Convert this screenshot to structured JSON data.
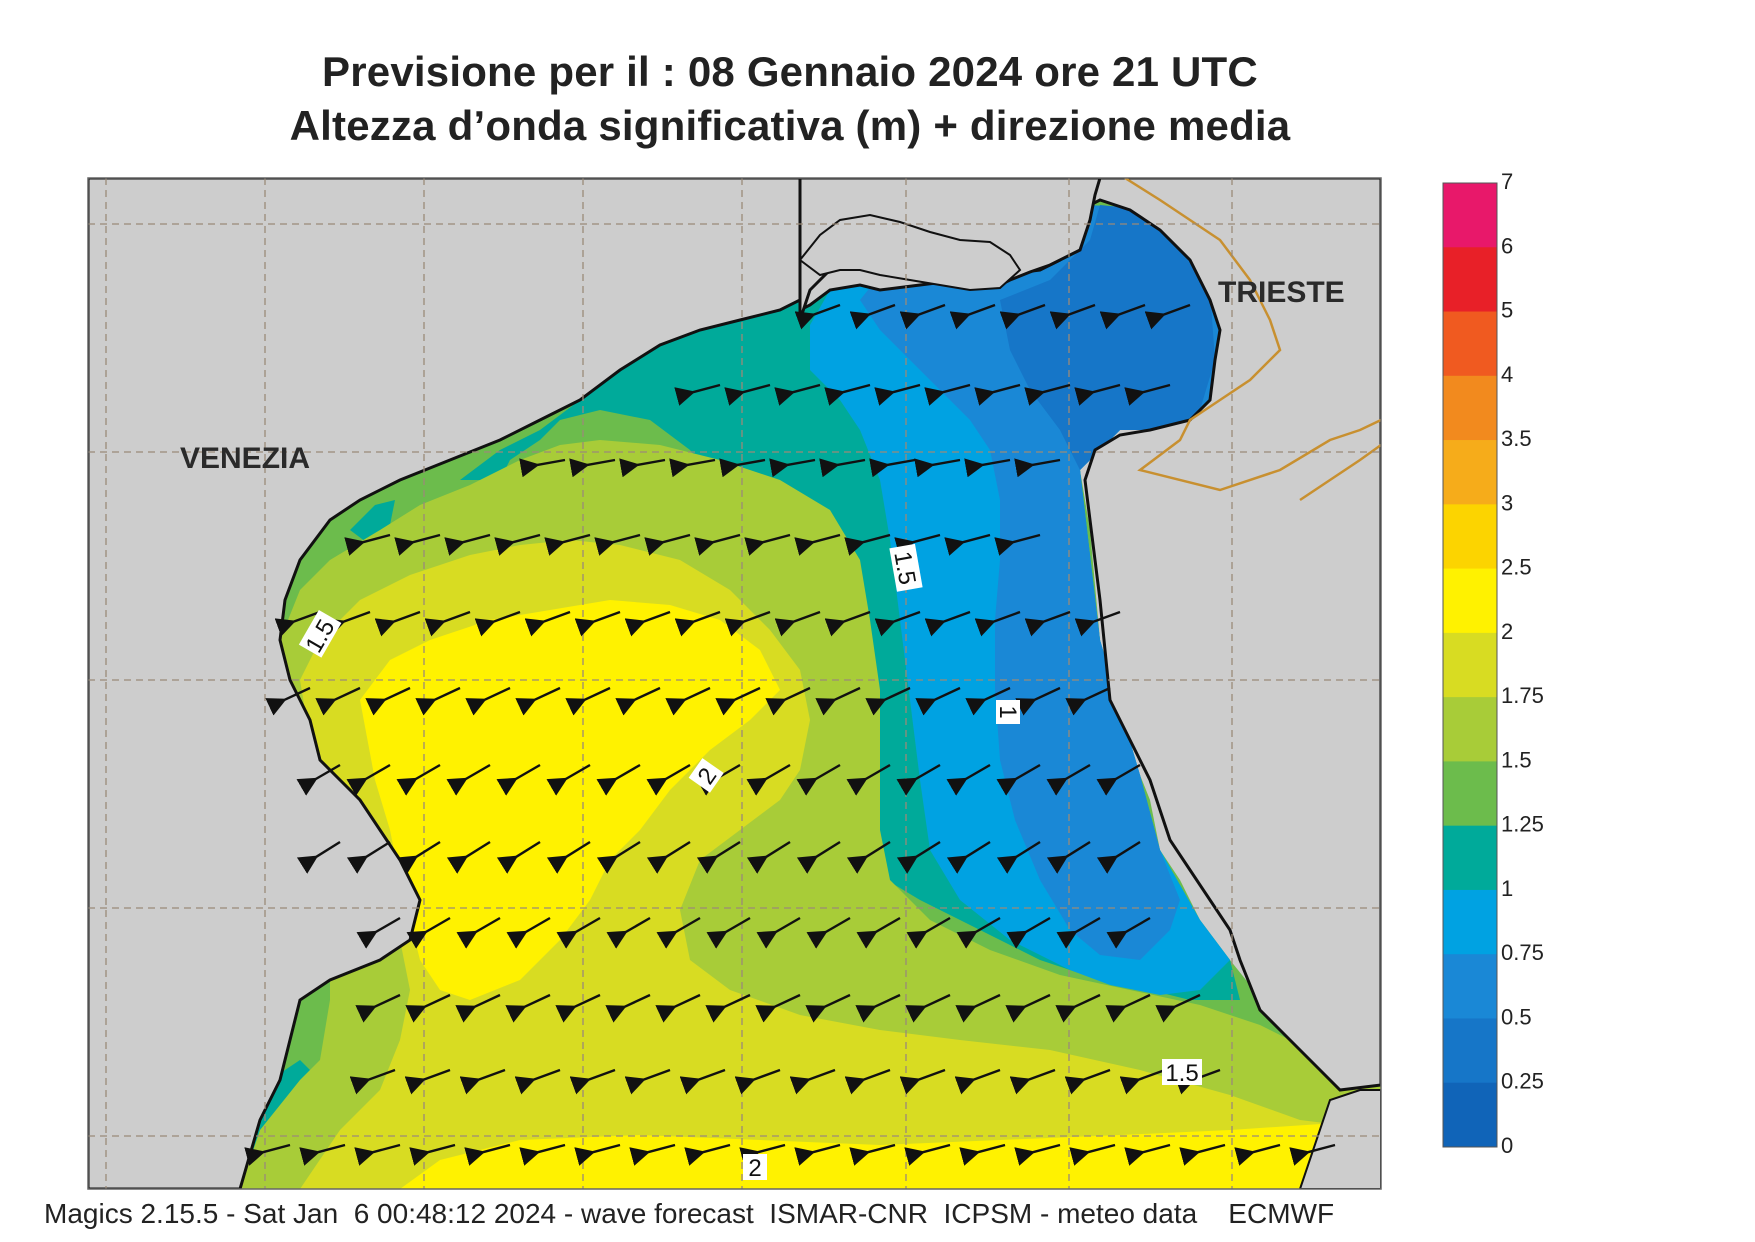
{
  "header": {
    "title_line1": "Previsione per il  :  08  Gennaio  2024   ore 21 UTC",
    "title_line2": "Altezza d’onda significativa (m) + direzione media"
  },
  "places": {
    "venezia": "VENEZIA",
    "trieste": "TRIESTE"
  },
  "contour_labels": [
    "1.5",
    "1.5",
    "1",
    "2",
    "1.5",
    "2"
  ],
  "colorbar": {
    "labels": [
      "7",
      "6",
      "5",
      "4",
      "3.5",
      "3",
      "2.5",
      "2",
      "1.75",
      "1.5",
      "1.25",
      "1",
      "0.75",
      "0.5",
      "0.25",
      "0"
    ],
    "colors": [
      "#e8186a",
      "#e82028",
      "#f05a20",
      "#f28a1e",
      "#f6ac1a",
      "#fcd400",
      "#fff200",
      "#d8dc22",
      "#a8cc38",
      "#6cbc4c",
      "#00aa9a",
      "#00a2e2",
      "#1a88d6",
      "#1676c8",
      "#1064b8"
    ]
  },
  "colors": {
    "land": "#cdcdcd",
    "coast": "#111111",
    "border": "#c89030",
    "grid": "#9a8a78",
    "arrow": "#111111"
  },
  "footer": "Magics 2.15.5 - Sat Jan  6 00:48:12 2024 - wave forecast  ISMAR-CNR  ICPSM - meteo data    ECMWF"
}
